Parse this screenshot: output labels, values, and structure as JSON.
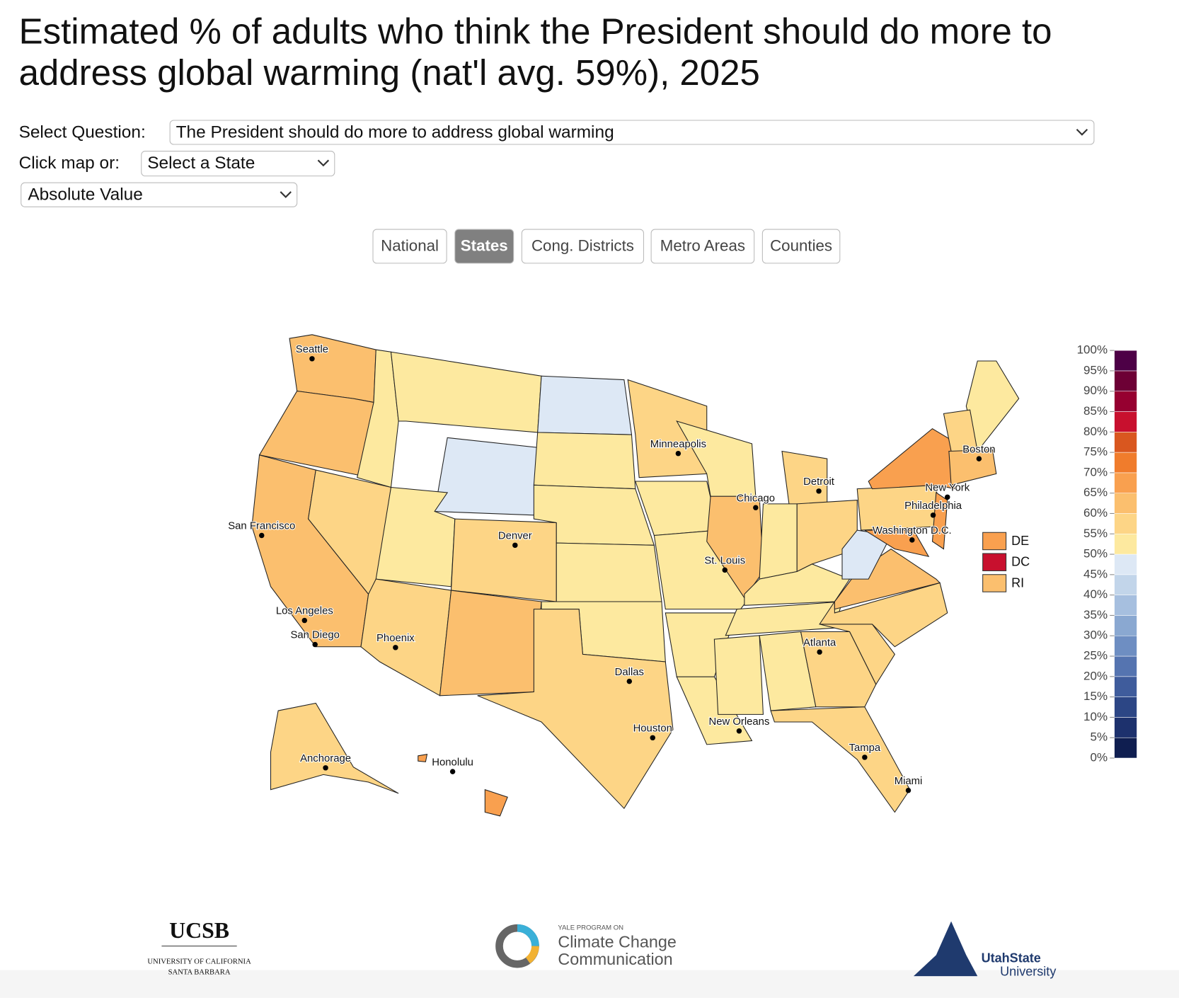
{
  "header": {
    "title_lines": [
      "Estimated % of adults who think the President should do more to",
      "address global warming (nat'l avg. 59%), 2025"
    ]
  },
  "controls": {
    "question_label": "Select Question:",
    "question_value": "The President should do more to address global warming",
    "state_label": "Click map or:",
    "state_value": "Select a State",
    "mode_value": "Absolute Value"
  },
  "tabs": {
    "items": [
      "National",
      "States",
      "Cong. Districts",
      "Metro Areas",
      "Counties"
    ],
    "active": 1
  },
  "map": {
    "cities": [
      "Seattle",
      "San Francisco",
      "Los Angeles",
      "San Diego",
      "Phoenix",
      "Denver",
      "Dallas",
      "Houston",
      "Minneapolis",
      "St. Louis",
      "Chicago",
      "Detroit",
      "New Orleans",
      "Atlanta",
      "Tampa",
      "Miami",
      "Boston",
      "New York",
      "Philadelphia",
      "Washington D.C.",
      "Anchorage",
      "Honolulu"
    ],
    "small_states": [
      {
        "label": "DE",
        "color": "#f9a04f"
      },
      {
        "label": "DC",
        "color": "#c8102e"
      },
      {
        "label": "RI",
        "color": "#fbbf6e"
      }
    ]
  },
  "legend": {
    "lim": [
      0,
      100
    ],
    "ticks": [
      {
        "value": 0,
        "label": "0%"
      },
      {
        "value": 5,
        "label": "5%"
      },
      {
        "value": 10,
        "label": "10%"
      },
      {
        "value": 15,
        "label": "15%"
      },
      {
        "value": 20,
        "label": "20%"
      },
      {
        "value": 25,
        "label": "25%"
      },
      {
        "value": 30,
        "label": "30%"
      },
      {
        "value": 35,
        "label": "35%"
      },
      {
        "value": 40,
        "label": "40%"
      },
      {
        "value": 45,
        "label": "45%"
      },
      {
        "value": 50,
        "label": "50%"
      },
      {
        "value": 55,
        "label": "55%"
      },
      {
        "value": 60,
        "label": "60%"
      },
      {
        "value": 65,
        "label": "65%"
      },
      {
        "value": 70,
        "label": "70%"
      },
      {
        "value": 75,
        "label": "75%"
      },
      {
        "value": 80,
        "label": "80%"
      },
      {
        "value": 85,
        "label": "85%"
      },
      {
        "value": 90,
        "label": "90%"
      },
      {
        "value": 95,
        "label": "95%"
      },
      {
        "value": 100,
        "label": "100%"
      }
    ],
    "colors": [
      "#0f1e50",
      "#1d316d",
      "#2c4685",
      "#3f5c9c",
      "#5574b0",
      "#6e8ec2",
      "#8aa8d1",
      "#a6bfdf",
      "#c2d5ea",
      "#dde8f5",
      "#fde99f",
      "#fdd586",
      "#fbbf6e",
      "#f9a04f",
      "#f07c2c",
      "#d9571f",
      "#c8102e",
      "#960030",
      "#6d0035",
      "#4d0046"
    ]
  },
  "footer": {
    "ucsb": [
      "UCSB",
      "UNIVERSITY OF CALIFORNIA",
      "SANTA BARBARA"
    ],
    "yale": [
      "YALE PROGRAM ON",
      "Climate Change",
      "Communication"
    ],
    "usu": [
      "UtahState",
      "University"
    ]
  }
}
